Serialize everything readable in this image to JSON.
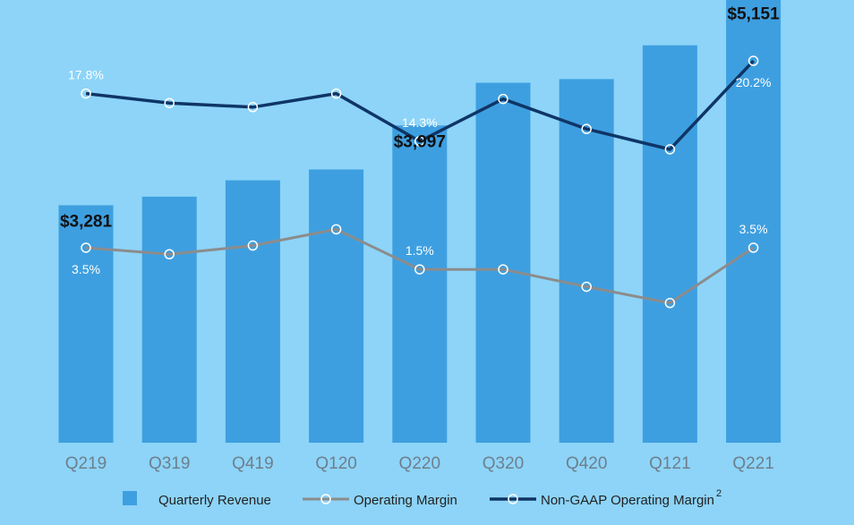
{
  "colors": {
    "background": "#8dd4f8",
    "bar": "#3e9fe0",
    "operating_margin": "#8c8c8c",
    "non_gaap_margin": "#0f3566"
  },
  "chart_data": {
    "type": "bar",
    "title": "",
    "xlabel": "",
    "ylabel": "",
    "categories": [
      "Q219",
      "Q319",
      "Q419",
      "Q120",
      "Q220",
      "Q320",
      "Q420",
      "Q121",
      "Q221"
    ],
    "series": [
      {
        "name": "Quarterly Revenue",
        "type": "bar",
        "values": [
          3281,
          3358,
          3505,
          3602,
          3997,
          4380,
          4413,
          4716,
          5151
        ]
      },
      {
        "name": "Operating Margin",
        "type": "line",
        "values": [
          3.5,
          2.9,
          3.7,
          5.2,
          1.5,
          1.5,
          -0.1,
          -1.6,
          3.5
        ]
      },
      {
        "name": "Non-GAAP Operating Margin",
        "superscript": "2",
        "type": "line",
        "values": [
          17.8,
          17.1,
          16.8,
          17.8,
          14.3,
          17.4,
          15.2,
          13.7,
          20.2
        ]
      }
    ],
    "data_labels": [
      {
        "series": 0,
        "index": 0,
        "text": "$3,281"
      },
      {
        "series": 0,
        "index": 4,
        "text": "$3,997"
      },
      {
        "series": 0,
        "index": 8,
        "text": "$5,151"
      },
      {
        "series": 1,
        "index": 0,
        "text": "3.5%"
      },
      {
        "series": 1,
        "index": 4,
        "text": "1.5%"
      },
      {
        "series": 1,
        "index": 8,
        "text": "3.5%"
      },
      {
        "series": 2,
        "index": 0,
        "text": "17.8%"
      },
      {
        "series": 2,
        "index": 4,
        "text": "14.3%"
      },
      {
        "series": 2,
        "index": 8,
        "text": "20.2%"
      }
    ],
    "grid": false,
    "legend": "bottom",
    "y_axis_visible": false
  }
}
